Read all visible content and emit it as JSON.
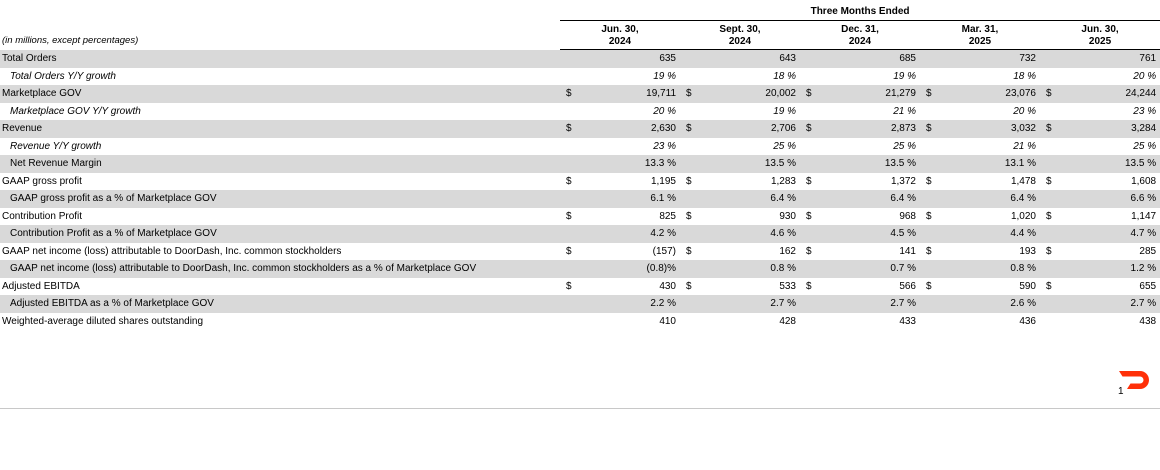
{
  "header": {
    "group_title": "Three Months Ended",
    "units_note": "(in millions, except percentages)",
    "periods": [
      {
        "line1": "Jun. 30,",
        "line2": "2024"
      },
      {
        "line1": "Sept. 30,",
        "line2": "2024"
      },
      {
        "line1": "Dec. 31,",
        "line2": "2024"
      },
      {
        "line1": "Mar. 31,",
        "line2": "2025"
      },
      {
        "line1": "Jun. 30,",
        "line2": "2025"
      }
    ]
  },
  "rows": [
    {
      "label": "Total Orders",
      "dollar": false,
      "values": [
        "635",
        "643",
        "685",
        "732",
        "761"
      ]
    },
    {
      "label": "Total Orders Y/Y growth",
      "dollar": false,
      "values": [
        "19 %",
        "18 %",
        "19 %",
        "18 %",
        "20 %"
      ]
    },
    {
      "label": "Marketplace GOV",
      "dollar": true,
      "values": [
        "19,711",
        "20,002",
        "21,279",
        "23,076",
        "24,244"
      ]
    },
    {
      "label": "Marketplace GOV Y/Y growth",
      "dollar": false,
      "values": [
        "20 %",
        "19 %",
        "21 %",
        "20 %",
        "23 %"
      ]
    },
    {
      "label": "Revenue",
      "dollar": true,
      "values": [
        "2,630",
        "2,706",
        "2,873",
        "3,032",
        "3,284"
      ]
    },
    {
      "label": "Revenue Y/Y growth",
      "dollar": false,
      "values": [
        "23 %",
        "25 %",
        "25 %",
        "21 %",
        "25 %"
      ]
    },
    {
      "label": "Net Revenue Margin",
      "dollar": false,
      "values": [
        "13.3 %",
        "13.5 %",
        "13.5 %",
        "13.1 %",
        "13.5 %"
      ]
    },
    {
      "label": "GAAP gross profit",
      "dollar": true,
      "values": [
        "1,195",
        "1,283",
        "1,372",
        "1,478",
        "1,608"
      ]
    },
    {
      "label": "GAAP gross profit as a % of Marketplace GOV",
      "dollar": false,
      "values": [
        "6.1 %",
        "6.4 %",
        "6.4 %",
        "6.4 %",
        "6.6 %"
      ]
    },
    {
      "label": "Contribution Profit",
      "dollar": true,
      "values": [
        "825",
        "930",
        "968",
        "1,020",
        "1,147"
      ]
    },
    {
      "label": "Contribution Profit as a % of Marketplace GOV",
      "dollar": false,
      "values": [
        "4.2 %",
        "4.6 %",
        "4.5 %",
        "4.4 %",
        "4.7 %"
      ]
    },
    {
      "label": "GAAP net income (loss) attributable to DoorDash, Inc. common stockholders",
      "dollar": true,
      "values": [
        "(157)",
        "162",
        "141",
        "193",
        "285"
      ]
    },
    {
      "label": "GAAP net income (loss) attributable to DoorDash, Inc. common stockholders as a % of Marketplace GOV",
      "dollar": false,
      "values": [
        "(0.8)%",
        "0.8 %",
        "0.7 %",
        "0.8 %",
        "1.2 %"
      ]
    },
    {
      "label": "Adjusted EBITDA",
      "dollar": true,
      "values": [
        "430",
        "533",
        "566",
        "590",
        "655"
      ]
    },
    {
      "label": "Adjusted EBITDA as a % of Marketplace GOV",
      "dollar": false,
      "values": [
        "2.2 %",
        "2.7 %",
        "2.7 %",
        "2.6 %",
        "2.7 %"
      ]
    },
    {
      "label": "Weighted-average diluted shares outstanding",
      "dollar": false,
      "values": [
        "410",
        "428",
        "433",
        "436",
        "438"
      ]
    }
  ],
  "currency_symbol": "$",
  "footer": {
    "page_number": "1",
    "logo_icon": "doordash-logo-icon",
    "logo_color": "#ff3008"
  }
}
